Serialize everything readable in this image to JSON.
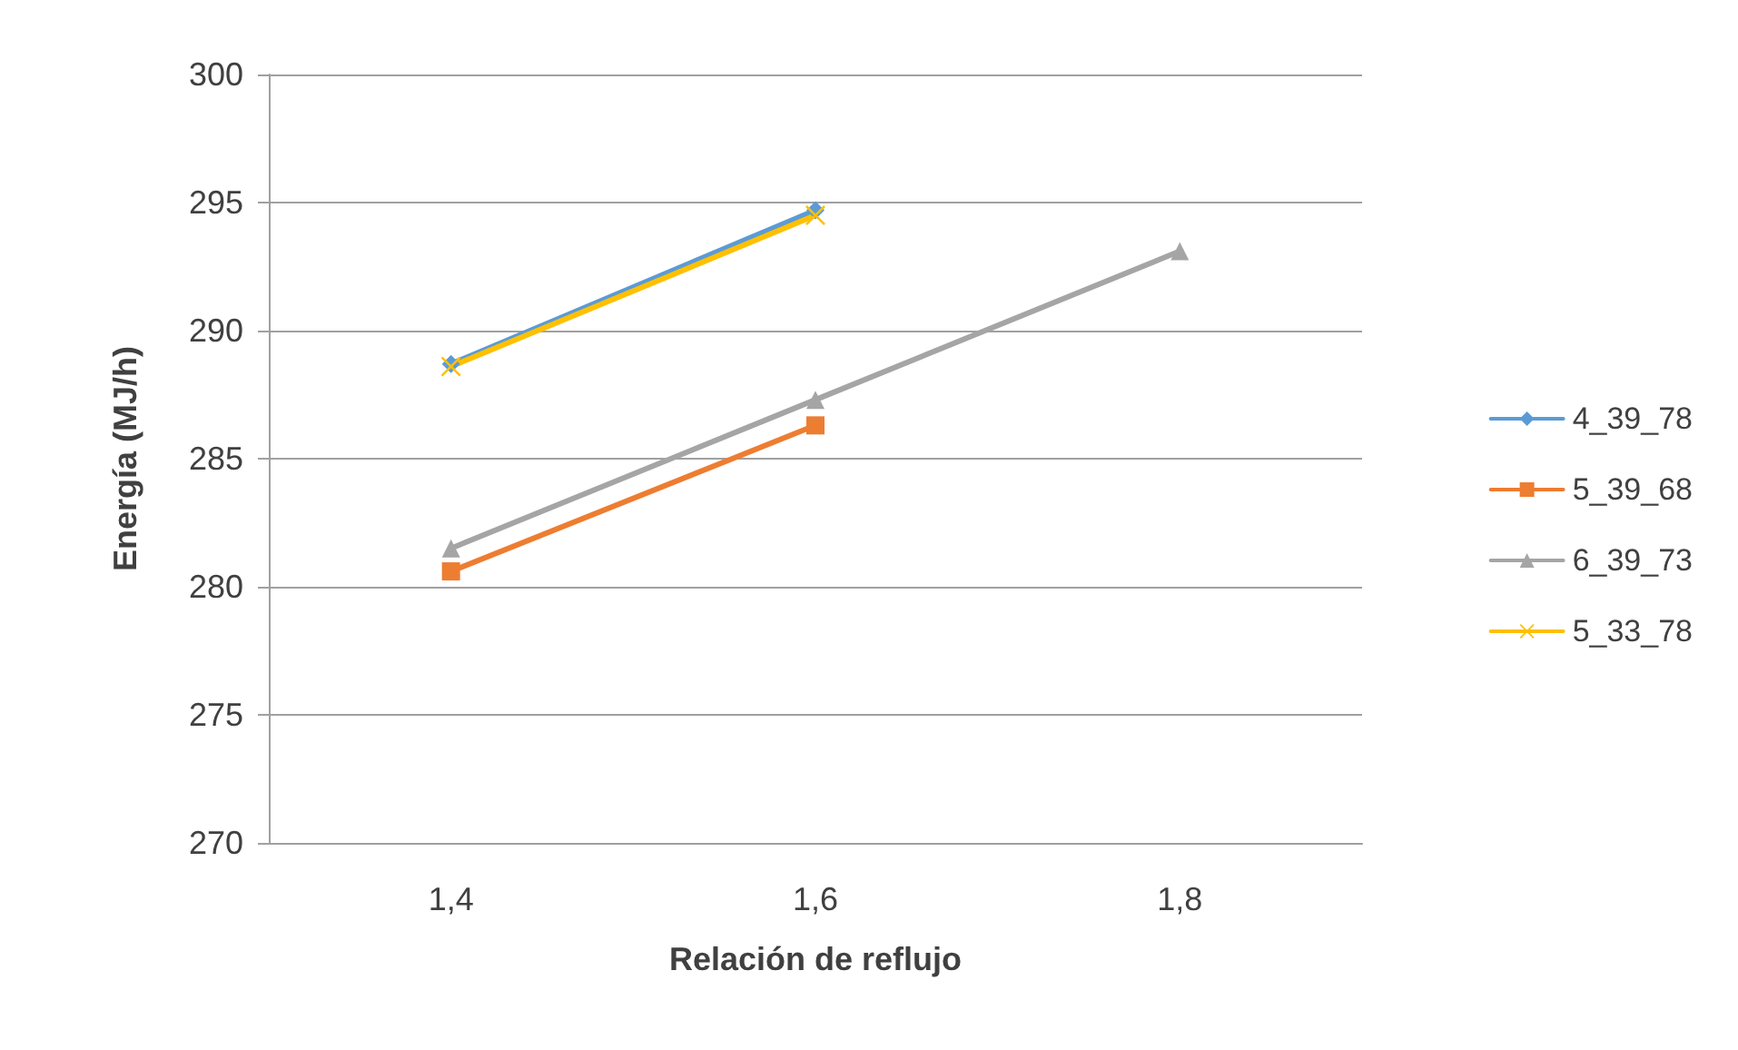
{
  "chart_data": {
    "type": "line",
    "xlabel": "Relación de reflujo",
    "ylabel": "Energía (MJ/h)",
    "categories": [
      "1,4",
      "1,6",
      "1,8"
    ],
    "series": [
      {
        "name": "4_39_78",
        "color": "#5b9bd5",
        "marker": "diamond",
        "values": [
          288.7,
          294.7,
          null
        ]
      },
      {
        "name": "5_39_68",
        "color": "#ed7d31",
        "marker": "square",
        "values": [
          280.6,
          286.3,
          null
        ]
      },
      {
        "name": "6_39_73",
        "color": "#a5a5a5",
        "marker": "triangle",
        "values": [
          281.5,
          287.3,
          293.1
        ]
      },
      {
        "name": "5_33_78",
        "color": "#ffc000",
        "marker": "cross",
        "values": [
          288.6,
          294.5,
          null
        ]
      }
    ],
    "ylim": [
      270,
      300
    ],
    "yticks": [
      270,
      275,
      280,
      285,
      290,
      295,
      300
    ],
    "grid": "y",
    "legend": "right",
    "line_style": "solid"
  }
}
